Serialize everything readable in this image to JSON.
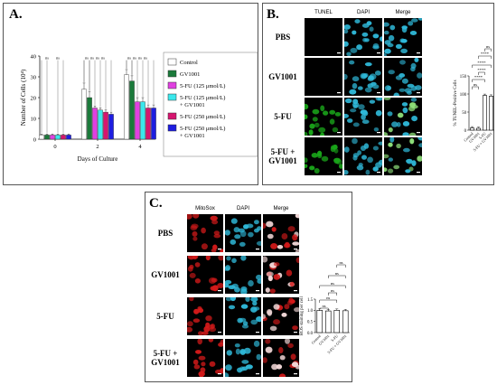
{
  "panels": {
    "a": {
      "label": "A."
    },
    "b": {
      "label": "B."
    },
    "c": {
      "label": "C."
    }
  },
  "colors": {
    "control": "#ffffff",
    "gv1001": "#1a7a3a",
    "fu125": "#e040e0",
    "fu125gv": "#3ae8ec",
    "fu250": "#d6156f",
    "fu250gv": "#1d1de0",
    "tunel": "#1aa61a",
    "dapi": "#2fb8d8",
    "mitosox": "#d41a1a"
  },
  "chart_data": [
    {
      "type": "bar",
      "ylabel": "Number of Cells (10⁴)",
      "xlabel": "Days of Culture",
      "categories": [
        "0",
        "2",
        "4"
      ],
      "ylim": [
        0,
        40
      ],
      "yticks": [
        "0",
        "10",
        "20",
        "30",
        "40"
      ],
      "legend_position": "right",
      "series": [
        {
          "name": "Control",
          "values": [
            2,
            24,
            31
          ],
          "err": [
            0.5,
            3,
            2.5
          ]
        },
        {
          "name": "GV1001",
          "values": [
            2,
            20,
            28
          ],
          "err": [
            0.5,
            3,
            2.5
          ]
        },
        {
          "name": "5-FU (125 μmol/L)",
          "values": [
            2,
            15,
            18
          ],
          "err": [
            0.5,
            1,
            2
          ]
        },
        {
          "name": "5-FU (125 μmol/L) + GV1001",
          "values": [
            2,
            14,
            18
          ],
          "err": [
            0.5,
            1,
            2
          ]
        },
        {
          "name": "5-FU (250 μmol/L)",
          "values": [
            2,
            13,
            15
          ],
          "err": [
            0.5,
            1,
            1.5
          ]
        },
        {
          "name": "5-FU (250 μmol/L) + GV1001",
          "values": [
            2,
            12,
            15
          ],
          "err": [
            0.5,
            1,
            1.5
          ]
        }
      ],
      "significance": [
        "ns",
        "ns",
        "ns",
        "ns",
        "ns",
        "ns",
        "ns",
        "ns",
        "ns",
        "ns"
      ]
    },
    {
      "type": "bar",
      "ylabel": "% TUNEL-Positive Cells",
      "categories": [
        "Control",
        "GV1001",
        "5-FU",
        "5-FU + GV1001"
      ],
      "values": [
        6,
        5,
        96,
        94
      ],
      "ylim": [
        0,
        150
      ],
      "yticks": [
        "0",
        "50",
        "100",
        "150"
      ],
      "significance": [
        "ns",
        "****",
        "****",
        "****",
        "****",
        "ns"
      ]
    },
    {
      "type": "bar",
      "ylabel": "ROS staining per cell",
      "categories": [
        "Control",
        "GV1001",
        "5-FU",
        "5-FU + GV1001"
      ],
      "values": [
        1.0,
        0.97,
        1.0,
        0.98
      ],
      "ylim": [
        0,
        1.5
      ],
      "yticks": [
        "0.0",
        "0.5",
        "1.0",
        "1.5"
      ],
      "significance": [
        "ns",
        "ns",
        "ns",
        "ns",
        "ns",
        "ns"
      ]
    }
  ],
  "micrographs": {
    "b": {
      "columns": [
        "TUNEL",
        "DAPI",
        "Merge"
      ],
      "rows": [
        "PBS",
        "GV1001",
        "5-FU",
        "5-FU + GV1001"
      ]
    },
    "c": {
      "columns": [
        "MitoSox",
        "DAPI",
        "Merge"
      ],
      "rows": [
        "PBS",
        "GV1001",
        "5-FU",
        "5-FU + GV1001"
      ]
    }
  }
}
